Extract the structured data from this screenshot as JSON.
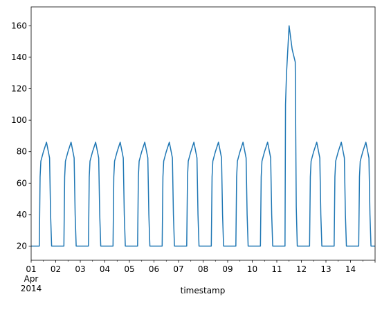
{
  "chart_data": {
    "type": "line",
    "title": "",
    "xlabel": "timestamp",
    "ylabel": "",
    "x_tick_labels": [
      "01",
      "02",
      "03",
      "04",
      "05",
      "06",
      "07",
      "08",
      "09",
      "10",
      "11",
      "12",
      "13",
      "14"
    ],
    "x_sub_labels": [
      "Apr",
      "2014"
    ],
    "y_ticks": [
      20,
      40,
      60,
      80,
      100,
      120,
      140,
      160
    ],
    "xlim": [
      "2014-04-01",
      "2014-04-15"
    ],
    "ylim": [
      11,
      172
    ],
    "grid": false,
    "legend": "none",
    "line_color": "#1f77b4",
    "series": [
      {
        "x": [
          "2014-04-01 00:00",
          "2014-04-01 08:00",
          "2014-04-01 08:45",
          "2014-04-01 09:30",
          "2014-04-01 12:00",
          "2014-04-01 15:00",
          "2014-04-01 18:00",
          "2014-04-01 19:00",
          "2014-04-01 20:00",
          "2014-04-02 08:00",
          "2014-04-02 08:45",
          "2014-04-02 09:30",
          "2014-04-02 12:00",
          "2014-04-02 15:00",
          "2014-04-02 18:00",
          "2014-04-02 19:00",
          "2014-04-02 20:00",
          "2014-04-03 08:00",
          "2014-04-03 08:45",
          "2014-04-03 09:30",
          "2014-04-03 12:00",
          "2014-04-03 15:00",
          "2014-04-03 18:00",
          "2014-04-03 19:00",
          "2014-04-03 20:00",
          "2014-04-04 08:00",
          "2014-04-04 08:45",
          "2014-04-04 09:30",
          "2014-04-04 12:00",
          "2014-04-04 15:00",
          "2014-04-04 18:00",
          "2014-04-04 19:00",
          "2014-04-04 20:00",
          "2014-04-05 08:00",
          "2014-04-05 08:45",
          "2014-04-05 09:30",
          "2014-04-05 12:00",
          "2014-04-05 15:00",
          "2014-04-05 18:00",
          "2014-04-05 19:00",
          "2014-04-05 20:00",
          "2014-04-06 08:00",
          "2014-04-06 08:45",
          "2014-04-06 09:30",
          "2014-04-06 12:00",
          "2014-04-06 15:00",
          "2014-04-06 18:00",
          "2014-04-06 19:00",
          "2014-04-06 20:00",
          "2014-04-07 08:00",
          "2014-04-07 08:45",
          "2014-04-07 09:30",
          "2014-04-07 12:00",
          "2014-04-07 15:00",
          "2014-04-07 18:00",
          "2014-04-07 19:00",
          "2014-04-07 20:00",
          "2014-04-08 08:00",
          "2014-04-08 08:45",
          "2014-04-08 09:30",
          "2014-04-08 12:00",
          "2014-04-08 15:00",
          "2014-04-08 18:00",
          "2014-04-08 19:00",
          "2014-04-08 20:00",
          "2014-04-09 08:00",
          "2014-04-09 08:45",
          "2014-04-09 09:30",
          "2014-04-09 12:00",
          "2014-04-09 15:00",
          "2014-04-09 18:00",
          "2014-04-09 19:00",
          "2014-04-09 20:00",
          "2014-04-10 08:00",
          "2014-04-10 08:45",
          "2014-04-10 09:30",
          "2014-04-10 12:00",
          "2014-04-10 15:00",
          "2014-04-10 18:00",
          "2014-04-10 19:00",
          "2014-04-10 20:00",
          "2014-04-11 08:00",
          "2014-04-11 08:30",
          "2014-04-11 09:30",
          "2014-04-11 12:00",
          "2014-04-11 15:00",
          "2014-04-11 18:00",
          "2014-04-11 19:00",
          "2014-04-11 20:00",
          "2014-04-12 08:00",
          "2014-04-12 08:45",
          "2014-04-12 09:30",
          "2014-04-12 12:00",
          "2014-04-12 15:00",
          "2014-04-12 18:00",
          "2014-04-12 19:00",
          "2014-04-12 20:00",
          "2014-04-13 08:00",
          "2014-04-13 08:45",
          "2014-04-13 09:30",
          "2014-04-13 12:00",
          "2014-04-13 15:00",
          "2014-04-13 18:00",
          "2014-04-13 19:00",
          "2014-04-13 20:00",
          "2014-04-14 08:00",
          "2014-04-14 08:45",
          "2014-04-14 09:30",
          "2014-04-14 12:00",
          "2014-04-14 15:00",
          "2014-04-14 18:00",
          "2014-04-14 19:00",
          "2014-04-14 20:00",
          "2014-04-15 00:00"
        ],
        "values": [
          20,
          20,
          64,
          74,
          80,
          86,
          76,
          40,
          20,
          20,
          64,
          74,
          80,
          86,
          76,
          40,
          20,
          20,
          64,
          74,
          80,
          86,
          76,
          40,
          20,
          20,
          64,
          74,
          80,
          86,
          76,
          40,
          20,
          20,
          64,
          74,
          80,
          86,
          76,
          40,
          20,
          20,
          64,
          74,
          80,
          86,
          76,
          40,
          20,
          20,
          64,
          74,
          80,
          86,
          76,
          40,
          20,
          20,
          64,
          74,
          80,
          86,
          76,
          40,
          20,
          20,
          64,
          74,
          80,
          86,
          76,
          40,
          20,
          20,
          64,
          74,
          80,
          86,
          76,
          40,
          20,
          20,
          110,
          130,
          160,
          145,
          137,
          45,
          20,
          20,
          64,
          74,
          80,
          86,
          76,
          40,
          20,
          20,
          64,
          74,
          80,
          86,
          76,
          40,
          20,
          20,
          64,
          74,
          80,
          86,
          76,
          40,
          20,
          20
        ]
      }
    ]
  }
}
